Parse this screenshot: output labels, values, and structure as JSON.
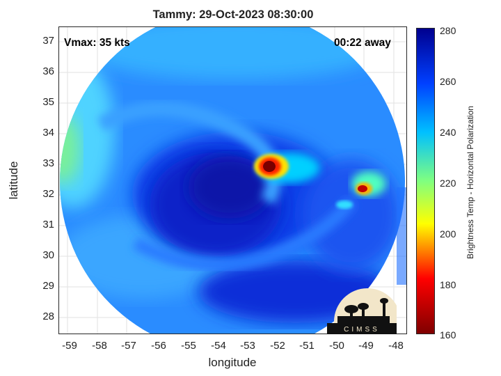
{
  "title": "Tammy: 29-Oct-2023 08:30:00",
  "annotations": {
    "vmax": "Vmax: 35 kts",
    "time_away": "00:22 away"
  },
  "axes": {
    "xlabel": "longitude",
    "ylabel": "latitude",
    "xticks": [
      "-59",
      "-58",
      "-57",
      "-56",
      "-55",
      "-54",
      "-53",
      "-52",
      "-51",
      "-50",
      "-49",
      "-48"
    ],
    "yticks": [
      "37",
      "36",
      "35",
      "34",
      "33",
      "32",
      "31",
      "30",
      "29",
      "28"
    ],
    "xlim": [
      -59.4,
      -47.8
    ],
    "ylim": [
      27.5,
      37.5
    ],
    "grid": true
  },
  "colorbar": {
    "label": "Brightness Temp - Horizontal Polarization",
    "ticks": [
      "280",
      "260",
      "240",
      "220",
      "200",
      "180",
      "160"
    ],
    "range": [
      160,
      280
    ],
    "colormap": "jet-reversed"
  },
  "logo_text": "CIMSS",
  "colors": {
    "cold_core": "#7a0000",
    "warm_bg": "#2f8fff",
    "deep": "#0a1fd0"
  }
}
